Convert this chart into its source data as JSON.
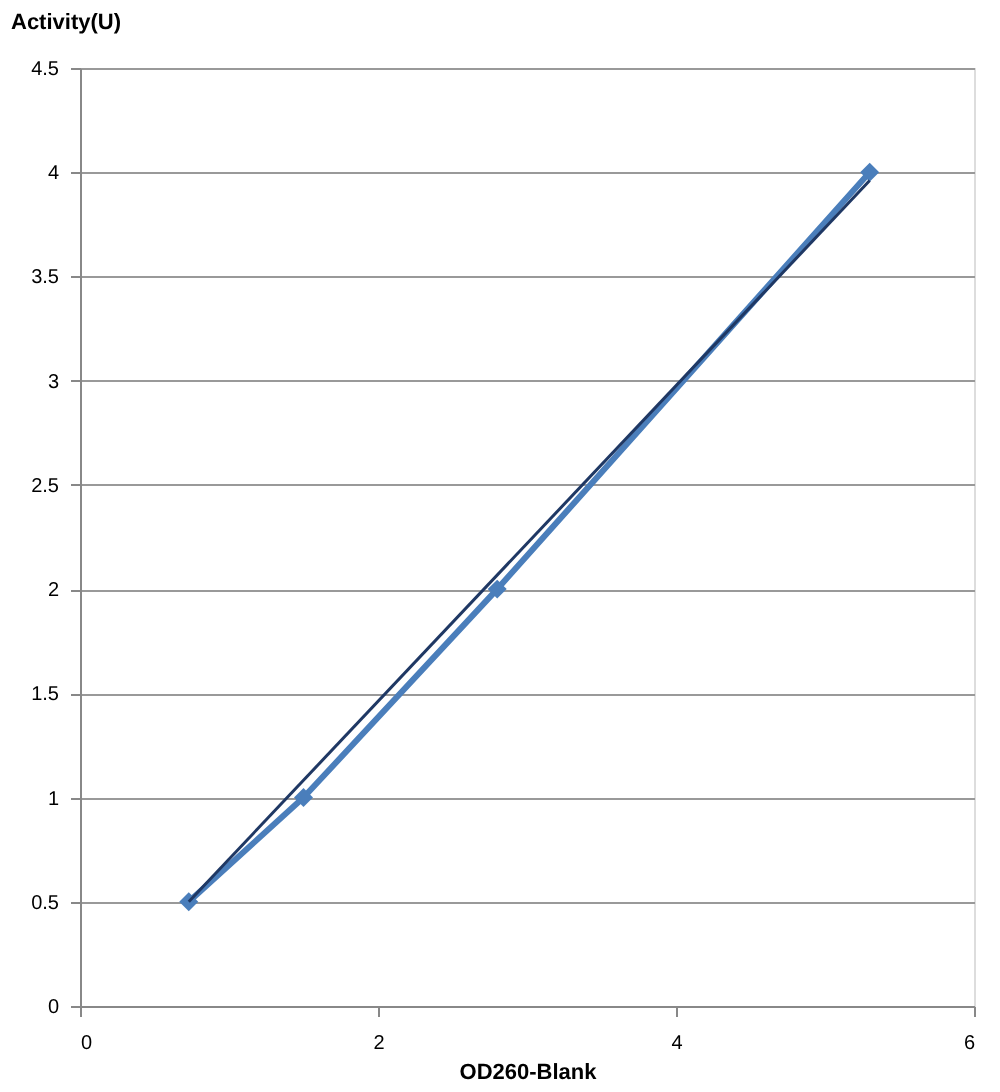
{
  "chart_data": {
    "type": "line",
    "xlabel": "OD260-Blank",
    "ylabel": "Activity(U)",
    "xlim": [
      0,
      6
    ],
    "xticks": [
      0,
      2,
      4,
      6
    ],
    "ylim": [
      0,
      4.5
    ],
    "yticks": [
      0,
      0.5,
      1,
      1.5,
      2,
      2.5,
      3,
      3.5,
      4,
      4.5
    ],
    "grid": "y",
    "legend": false,
    "line_style": "solid",
    "series": [
      {
        "color": "#4a7ebb",
        "marker": "diamond",
        "x": [
          0.73,
          1.5,
          2.8,
          5.3
        ],
        "values": [
          0.5,
          1,
          2,
          4
        ]
      },
      {
        "color": "#1f3864",
        "marker": "none",
        "x": [
          0.73,
          5.3
        ],
        "values": [
          0.5,
          3.96
        ]
      }
    ]
  }
}
